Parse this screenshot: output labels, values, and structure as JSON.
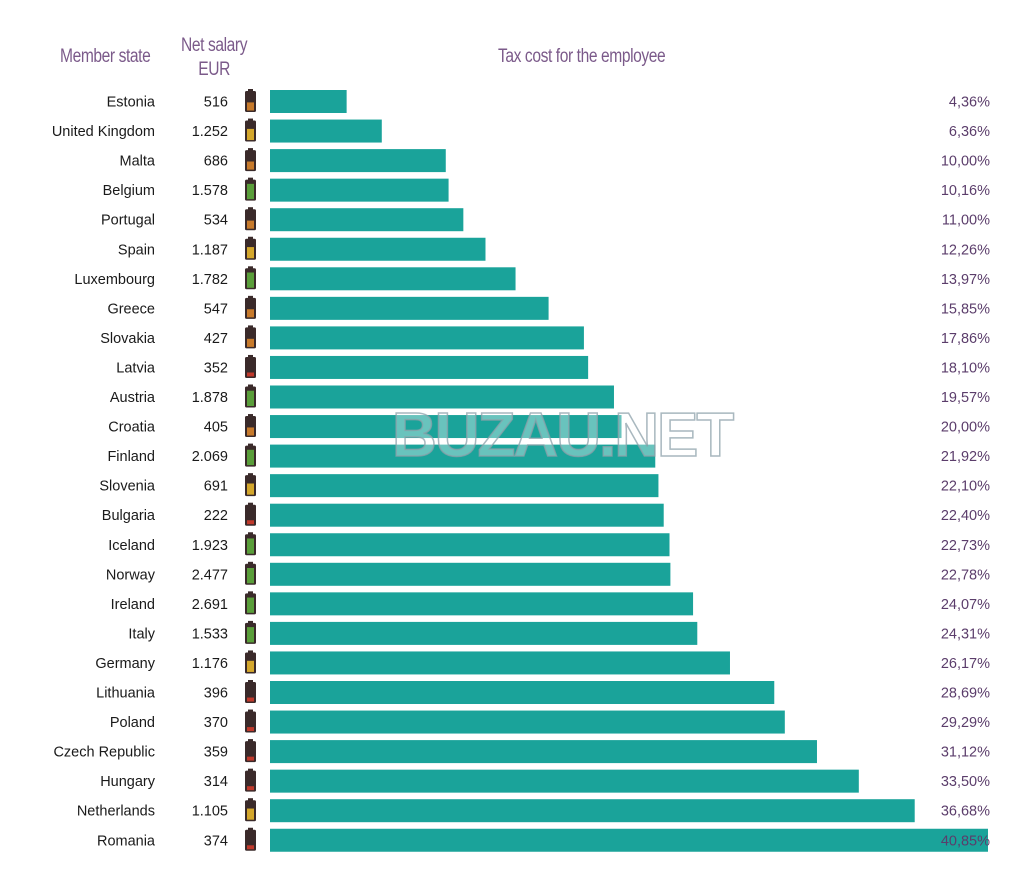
{
  "headers": {
    "member_state": "Member state",
    "net_salary_line1": "Net salary",
    "net_salary_line2": "EUR",
    "tax_cost": "Tax cost for the employee"
  },
  "watermark": "BUZAU.NET",
  "colors": {
    "bar": "#1aa39a",
    "header_text": "#7b5a8a",
    "percent_text": "#5b3d6b",
    "battery_high": "#5a9e3a",
    "battery_mid": "#d4a72c",
    "battery_midlow": "#c77a2b",
    "battery_low": "#c0392b"
  },
  "chart_data": {
    "type": "bar",
    "orientation": "horizontal",
    "title": "Tax cost for the employee",
    "categories": [
      "Estonia",
      "United Kingdom",
      "Malta",
      "Belgium",
      "Portugal",
      "Spain",
      "Luxembourg",
      "Greece",
      "Slovakia",
      "Latvia",
      "Austria",
      "Croatia",
      "Finland",
      "Slovenia",
      "Bulgaria",
      "Iceland",
      "Norway",
      "Ireland",
      "Italy",
      "Germany",
      "Lithuania",
      "Poland",
      "Czech Republic",
      "Hungary",
      "Netherlands",
      "Romania"
    ],
    "net_salary_labels": [
      "516",
      "1.252",
      "686",
      "1.578",
      "534",
      "1.187",
      "1.782",
      "547",
      "427",
      "352",
      "1.878",
      "405",
      "2.069",
      "691",
      "222",
      "1.923",
      "2.477",
      "2.691",
      "1.533",
      "1.176",
      "396",
      "370",
      "359",
      "314",
      "1.105",
      "374"
    ],
    "net_salary_level": [
      "midlow",
      "mid",
      "midlow",
      "high",
      "midlow",
      "mid",
      "high",
      "midlow",
      "midlow",
      "low",
      "high",
      "midlow",
      "high",
      "mid",
      "low",
      "high",
      "high",
      "high",
      "high",
      "mid",
      "low",
      "low",
      "low",
      "low",
      "mid",
      "low"
    ],
    "values": [
      4.36,
      6.36,
      10.0,
      10.16,
      11.0,
      12.26,
      13.97,
      15.85,
      17.86,
      18.1,
      19.57,
      20.0,
      21.92,
      22.1,
      22.4,
      22.73,
      22.78,
      24.07,
      24.31,
      26.17,
      28.69,
      29.29,
      31.12,
      33.5,
      36.68,
      40.85
    ],
    "value_labels": [
      "4,36%",
      "6,36%",
      "10,00%",
      "10,16%",
      "11,00%",
      "12,26%",
      "13,97%",
      "15,85%",
      "17,86%",
      "18,10%",
      "19,57%",
      "20,00%",
      "21,92%",
      "22,10%",
      "22,40%",
      "22,73%",
      "22,78%",
      "24,07%",
      "24,31%",
      "26,17%",
      "28,69%",
      "29,29%",
      "31,12%",
      "33,50%",
      "36,68%",
      "40,85%"
    ],
    "xlim": [
      0,
      40.85
    ],
    "grid": false,
    "legend": "none"
  }
}
